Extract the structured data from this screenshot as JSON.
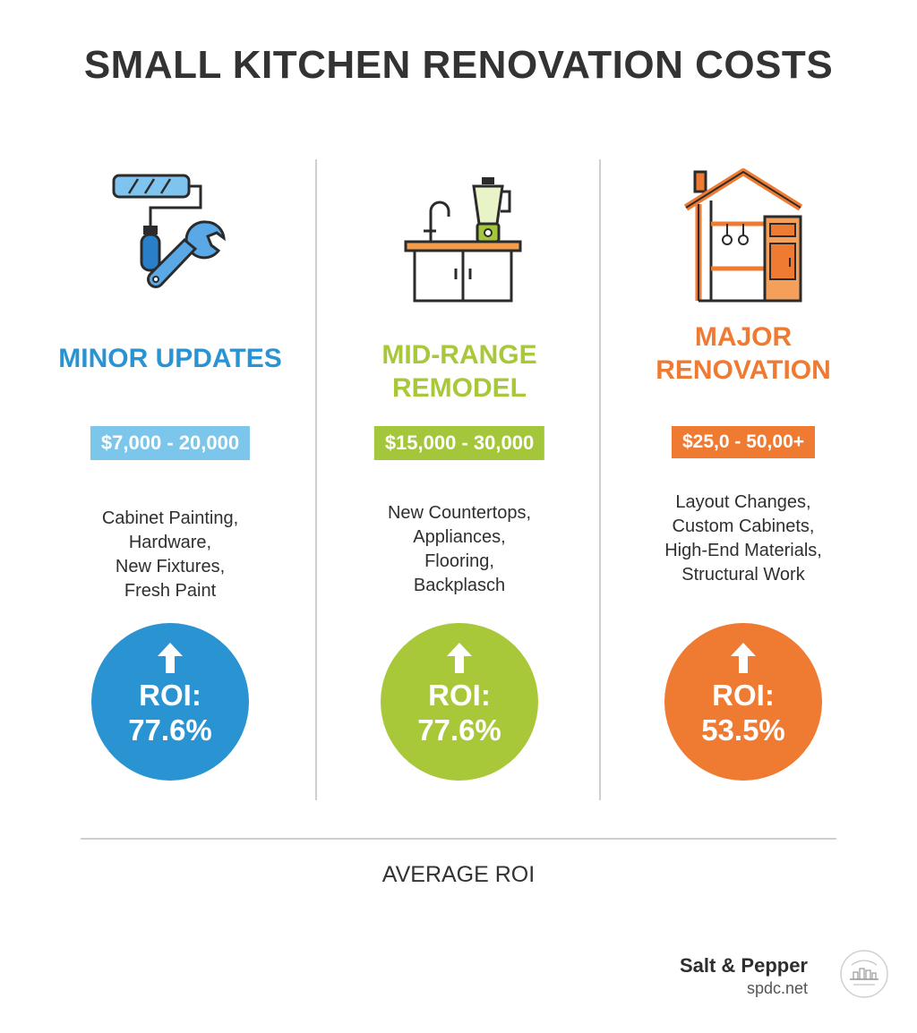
{
  "title": "SMALL KITCHEN RENOVATION COSTS",
  "colors": {
    "minor": "#2a93d2",
    "minor_price_bg": "#7cc6ec",
    "mid": "#a8c83a",
    "mid_price_bg": "#a4c63b",
    "major": "#ef7a32",
    "major_price_bg": "#ef7a32"
  },
  "columns": [
    {
      "heading": "MINOR UPDATES",
      "price": "$7,000 - 20,000",
      "features": [
        "Cabinet Painting,",
        "Hardware,",
        "New Fixtures,",
        "Fresh Paint"
      ],
      "roi_label": "ROI:",
      "roi_value": "77.6%",
      "icon": "paint-roller-wrench-icon"
    },
    {
      "heading_line1": "MID-RANGE",
      "heading_line2": "REMODEL",
      "price": "$15,000 - 30,000",
      "features": [
        "New Countertops,",
        "Appliances,",
        "Flooring,",
        "Backplasch"
      ],
      "roi_label": "ROI:",
      "roi_value": "77.6%",
      "icon": "kitchen-counter-blender-icon"
    },
    {
      "heading_line1": "MAJOR",
      "heading_line2": "RENOVATION",
      "price": "$25,0 - 50,00+",
      "features": [
        "Layout Changes,",
        "Custom Cabinets,",
        "High-End Materials,",
        "Structural Work"
      ],
      "roi_label": "ROI:",
      "roi_value": "53.5%",
      "icon": "house-kitchen-icon"
    }
  ],
  "footer_label": "AVERAGE ROI",
  "brand": {
    "name": "Salt & Pepper",
    "url": "spdc.net",
    "logo_icon": "salt-pepper-construction-logo-icon"
  }
}
